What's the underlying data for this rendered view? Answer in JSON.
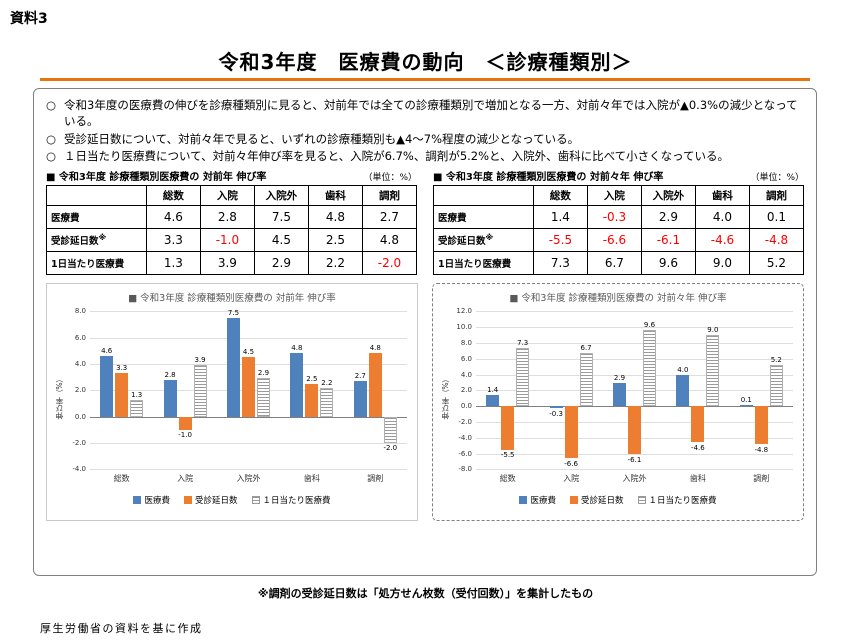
{
  "page": {
    "doc_label": "資料3",
    "title": "令和3年度　医療費の動向　＜診療種類別＞",
    "bullets": [
      {
        "marker": "○",
        "text": "令和3年度の医療費の伸びを診療種類別に見ると、対前年では全ての診療種類別で増加となる一方、対前々年では入院が▲0.3%の減少となっている。"
      },
      {
        "marker": "○",
        "text": "受診延日数について、対前々年で見ると、いずれの診療種類別も▲4～7%程度の減少となっている。"
      },
      {
        "marker": "○",
        "text": "１日当たり医療費について、対前々年伸び率を見ると、入院が6.7%、調剤が5.2%と、入院外、歯科に比べて小さくなっている。"
      }
    ],
    "note": "※調剤の受診延日数は「処方せん枚数（受付回数）」を集計したもの",
    "footer": "厚生労働省の資料を基に作成"
  },
  "tables": [
    {
      "title": "■ 令和3年度 診療種類別医療費の 対前年 伸び率",
      "unit": "（単位：%）",
      "columns": [
        "総数",
        "入院",
        "入院外",
        "歯科",
        "調剤"
      ],
      "rows": [
        {
          "label": "医療費",
          "sup": "",
          "values": [
            "4.6",
            "2.8",
            "7.5",
            "4.8",
            "2.7"
          ]
        },
        {
          "label": "受診延日数",
          "sup": "※",
          "values": [
            "3.3",
            "-1.0",
            "4.5",
            "2.5",
            "4.8"
          ]
        },
        {
          "label": "1日当たり医療費",
          "sup": "",
          "values": [
            "1.3",
            "3.9",
            "2.9",
            "2.2",
            "-2.0"
          ]
        }
      ]
    },
    {
      "title": "■ 令和3年度 診療種類別医療費の 対前々年 伸び率",
      "unit": "（単位：%）",
      "columns": [
        "総数",
        "入院",
        "入院外",
        "歯科",
        "調剤"
      ],
      "rows": [
        {
          "label": "医療費",
          "sup": "",
          "values": [
            "1.4",
            "-0.3",
            "2.9",
            "4.0",
            "0.1"
          ]
        },
        {
          "label": "受診延日数",
          "sup": "※",
          "values": [
            "-5.5",
            "-6.6",
            "-6.1",
            "-4.6",
            "-4.8"
          ]
        },
        {
          "label": "1日当たり医療費",
          "sup": "",
          "values": [
            "7.3",
            "6.7",
            "9.6",
            "9.0",
            "5.2"
          ]
        }
      ]
    }
  ],
  "chart_data": [
    {
      "type": "bar",
      "title": "■ 令和3年度 診療種類別医療費の 対前年 伸び率",
      "categories": [
        "総数",
        "入院",
        "入院外",
        "歯科",
        "調剤"
      ],
      "series": [
        {
          "name": "医療費",
          "color": "#4f81bd",
          "values": [
            4.6,
            2.8,
            7.5,
            4.8,
            2.7
          ]
        },
        {
          "name": "受診延日数",
          "color": "#ed7d31",
          "values": [
            3.3,
            -1.0,
            4.5,
            2.5,
            4.8
          ]
        },
        {
          "name": "１日当たり医療費",
          "color": "hatch",
          "values": [
            1.3,
            3.9,
            2.9,
            2.2,
            -2.0
          ]
        }
      ],
      "ylabel": "伸び率（%）",
      "ylim": [
        -4,
        8
      ],
      "ytick": 2,
      "grid": true,
      "legend_position": "bottom"
    },
    {
      "type": "bar",
      "title": "■ 令和3年度 診療種類別医療費の 対前々年 伸び率",
      "categories": [
        "総数",
        "入院",
        "入院外",
        "歯科",
        "調剤"
      ],
      "series": [
        {
          "name": "医療費",
          "color": "#4f81bd",
          "values": [
            1.4,
            -0.3,
            2.9,
            4.0,
            0.1
          ]
        },
        {
          "name": "受診延日数",
          "color": "#ed7d31",
          "values": [
            -5.5,
            -6.6,
            -6.1,
            -4.6,
            -4.8
          ]
        },
        {
          "name": "１日当たり医療費",
          "color": "hatch",
          "values": [
            7.3,
            6.7,
            9.6,
            9.0,
            5.2
          ]
        }
      ],
      "ylabel": "伸び率（%）",
      "ylim": [
        -8,
        12
      ],
      "ytick": 2,
      "grid": true,
      "legend_position": "bottom"
    }
  ]
}
